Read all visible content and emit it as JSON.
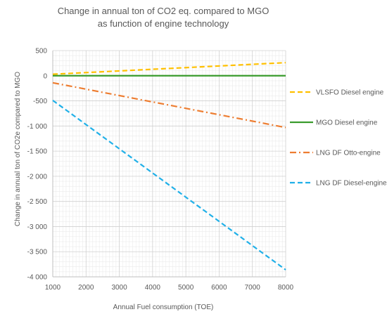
{
  "chart_data": {
    "type": "line",
    "title": [
      "Change in annual ton of CO2 eq. compared to MGO",
      "as function of engine technology"
    ],
    "xlabel": "Annual Fuel consumption (TOE)",
    "ylabel": "Change in annual ton of CO2e compared to MGO",
    "x_ticks": [
      "1000",
      "2000",
      "3000",
      "4000",
      "5000",
      "6000",
      "7000",
      "8000"
    ],
    "y_ticks": [
      "500",
      "0",
      "-500",
      "-1 000",
      "-1 500",
      "-2 000",
      "-2 500",
      "-3 000",
      "-3 500",
      "-4 000"
    ],
    "xlim": [
      1000,
      8000
    ],
    "ylim": [
      -4000,
      500
    ],
    "grid": "both",
    "legend_position": "right",
    "series": [
      {
        "name": "VLSFO Diesel engine",
        "color": "#FFC000",
        "dash": "dashed",
        "x": [
          1000,
          8000
        ],
        "y": [
          30,
          260
        ]
      },
      {
        "name": "MGO Diesel engine",
        "color": "#3A9B2D",
        "dash": "solid",
        "x": [
          1000,
          8000
        ],
        "y": [
          0,
          0
        ]
      },
      {
        "name": "LNG DF Otto-engine",
        "color": "#ED7D31",
        "dash": "dashdot",
        "x": [
          1000,
          8000
        ],
        "y": [
          -140,
          -1030
        ]
      },
      {
        "name": "LNG DF Diesel-engine",
        "color": "#20B0E8",
        "dash": "dashed",
        "x": [
          1000,
          8000
        ],
        "y": [
          -490,
          -3860
        ]
      }
    ]
  }
}
